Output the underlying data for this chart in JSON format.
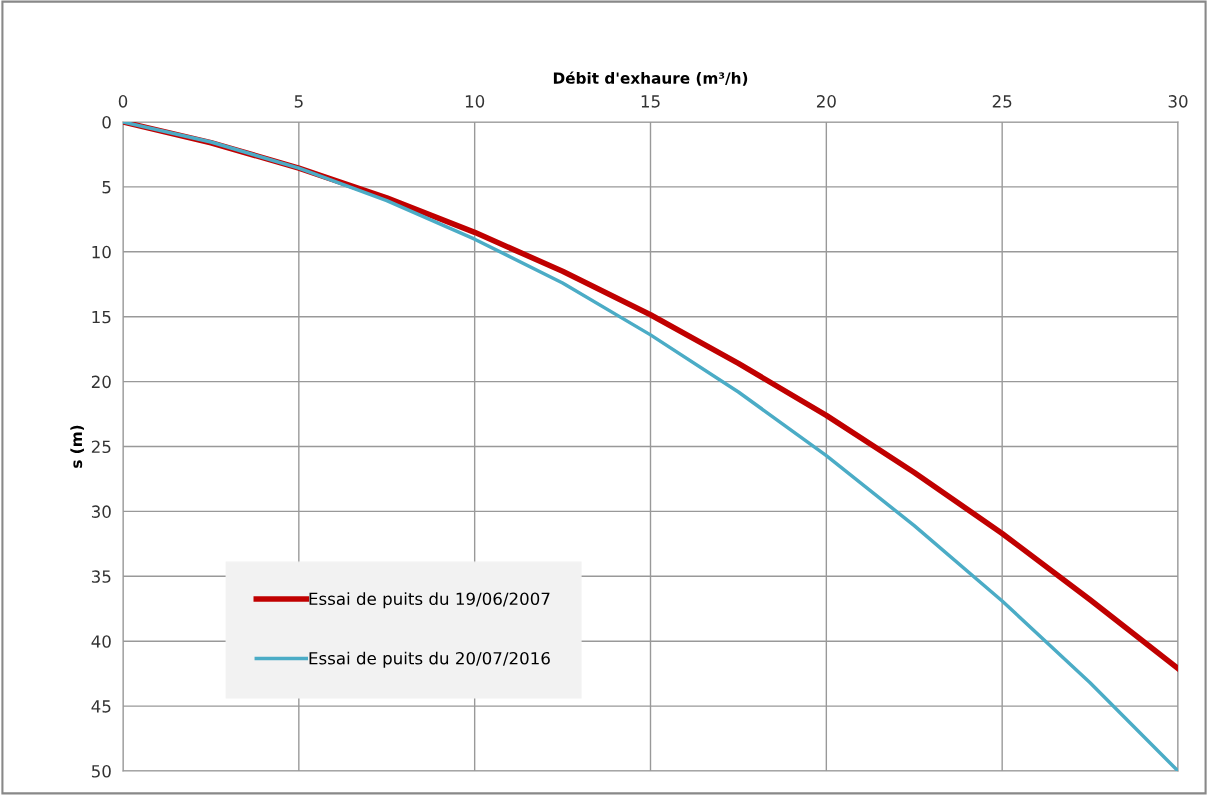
{
  "chart_data": {
    "type": "line",
    "xlabel": "Débit d'exhaure (m³/h)",
    "ylabel": "s (m)",
    "x": [
      0,
      2.5,
      5,
      7.5,
      10,
      12.5,
      15,
      17.5,
      20,
      22.5,
      25,
      27.5,
      30
    ],
    "series": [
      {
        "name": "Essai de puits du 19/06/2007",
        "color": "#c00000",
        "values": [
          0,
          1.6,
          3.55,
          5.85,
          8.5,
          11.5,
          14.85,
          18.6,
          22.6,
          27.0,
          31.7,
          36.8,
          42.1
        ]
      },
      {
        "name": "Essai de puits du 20/07/2016",
        "color": "#4bacc6",
        "values": [
          0,
          1.54,
          3.56,
          6.06,
          9.03,
          12.4,
          16.4,
          20.8,
          25.7,
          31.1,
          36.9,
          43.2,
          50.0
        ]
      }
    ],
    "xlim": [
      0,
      30
    ],
    "xticks": [
      0,
      5,
      10,
      15,
      20,
      25,
      30
    ],
    "ylim": [
      50,
      0
    ],
    "yticks": [
      0,
      5,
      10,
      15,
      20,
      25,
      30,
      35,
      40,
      45,
      50
    ],
    "grid": true,
    "legend": "bottom left",
    "marker": "none",
    "line_style": "solid"
  }
}
